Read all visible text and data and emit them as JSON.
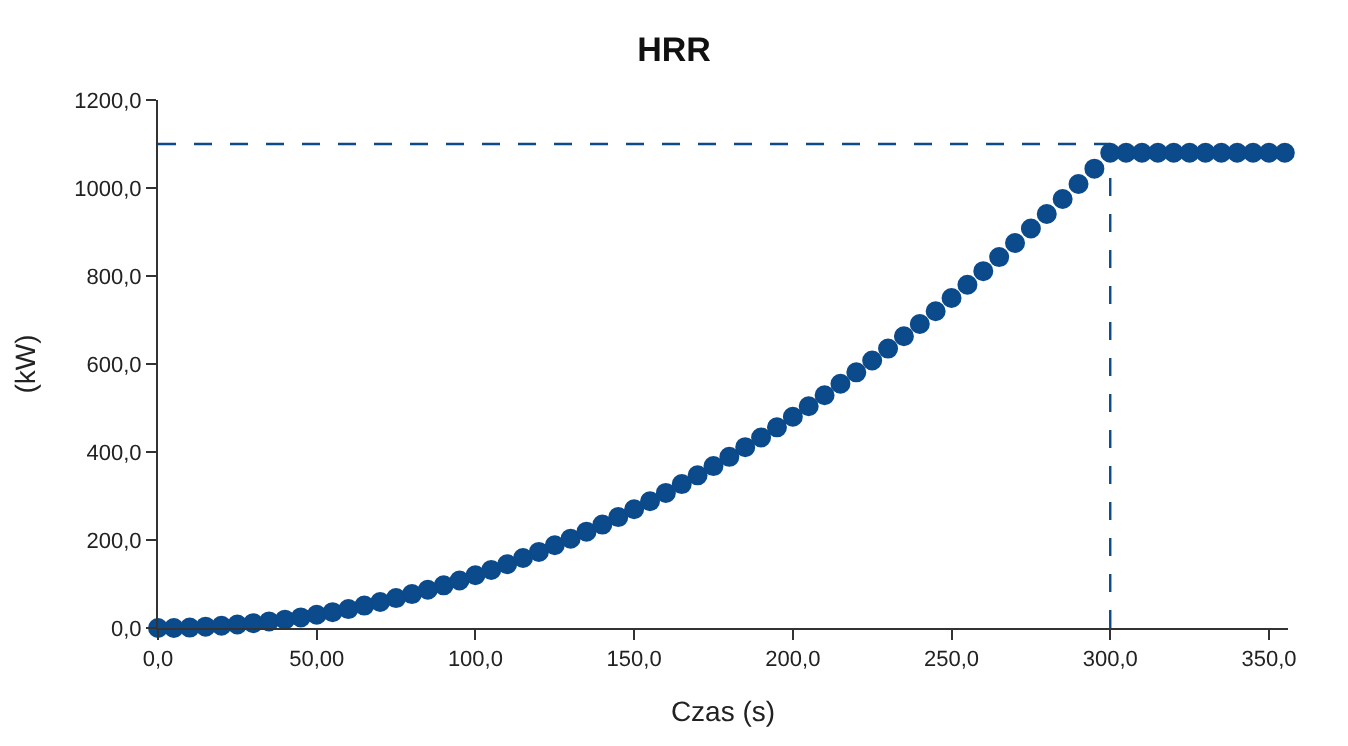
{
  "chart_data": {
    "type": "scatter",
    "title": "HRR",
    "xlabel": "Czas (s)",
    "ylabel": "(kW)",
    "series": [
      {
        "color": "#0b4a8b",
        "x": [
          0,
          5,
          10,
          15,
          20,
          25,
          30,
          35,
          40,
          45,
          50,
          55,
          60,
          65,
          70,
          75,
          80,
          85,
          90,
          95,
          100,
          105,
          110,
          115,
          120,
          125,
          130,
          135,
          140,
          145,
          150,
          155,
          160,
          165,
          170,
          175,
          180,
          185,
          190,
          195,
          200,
          205,
          210,
          215,
          220,
          225,
          230,
          235,
          240,
          245,
          250,
          255,
          260,
          265,
          270,
          275,
          280,
          285,
          290,
          295,
          300,
          305,
          310,
          315,
          320,
          325,
          330,
          335,
          340,
          345,
          350,
          355
        ],
        "values": [
          0,
          0,
          1,
          3,
          5,
          8,
          11,
          15,
          19,
          24,
          30,
          36,
          43,
          51,
          59,
          68,
          77,
          87,
          97,
          108,
          120,
          132,
          145,
          159,
          173,
          188,
          203,
          219,
          235,
          252,
          270,
          288,
          307,
          327,
          347,
          368,
          389,
          411,
          433,
          456,
          480,
          504,
          529,
          555,
          581,
          608,
          635,
          663,
          691,
          720,
          750,
          780,
          811,
          843,
          875,
          908,
          941,
          975,
          1009,
          1044,
          1080,
          1080,
          1080,
          1080,
          1080,
          1080,
          1080,
          1080,
          1080,
          1080,
          1080,
          1080
        ]
      }
    ],
    "marker": "circle",
    "xlim": [
      0,
      356
    ],
    "xticks": [
      {
        "value": 0,
        "label": "0,0"
      },
      {
        "value": 50,
        "label": "50,00"
      },
      {
        "value": 100,
        "label": "100,0"
      },
      {
        "value": 150,
        "label": "150,0"
      },
      {
        "value": 200,
        "label": "200,0"
      },
      {
        "value": 250,
        "label": "250,0"
      },
      {
        "value": 300,
        "label": "300,0"
      },
      {
        "value": 350,
        "label": "350,0"
      }
    ],
    "ylim": [
      0,
      1200
    ],
    "yticks": [
      {
        "value": 0,
        "label": "0,0"
      },
      {
        "value": 200,
        "label": "200,0"
      },
      {
        "value": 400,
        "label": "400,0"
      },
      {
        "value": 600,
        "label": "600,0"
      },
      {
        "value": 800,
        "label": "800,0"
      },
      {
        "value": 1000,
        "label": "1000,0"
      },
      {
        "value": 1200,
        "label": "1200,0"
      }
    ],
    "ref_lines": [
      {
        "axis": "y",
        "value": 1100,
        "color": "#0b4a8b",
        "line_style": "dashed"
      },
      {
        "axis": "x",
        "value": 300,
        "color": "#0b4a8b",
        "line_style": "dashed"
      }
    ]
  }
}
